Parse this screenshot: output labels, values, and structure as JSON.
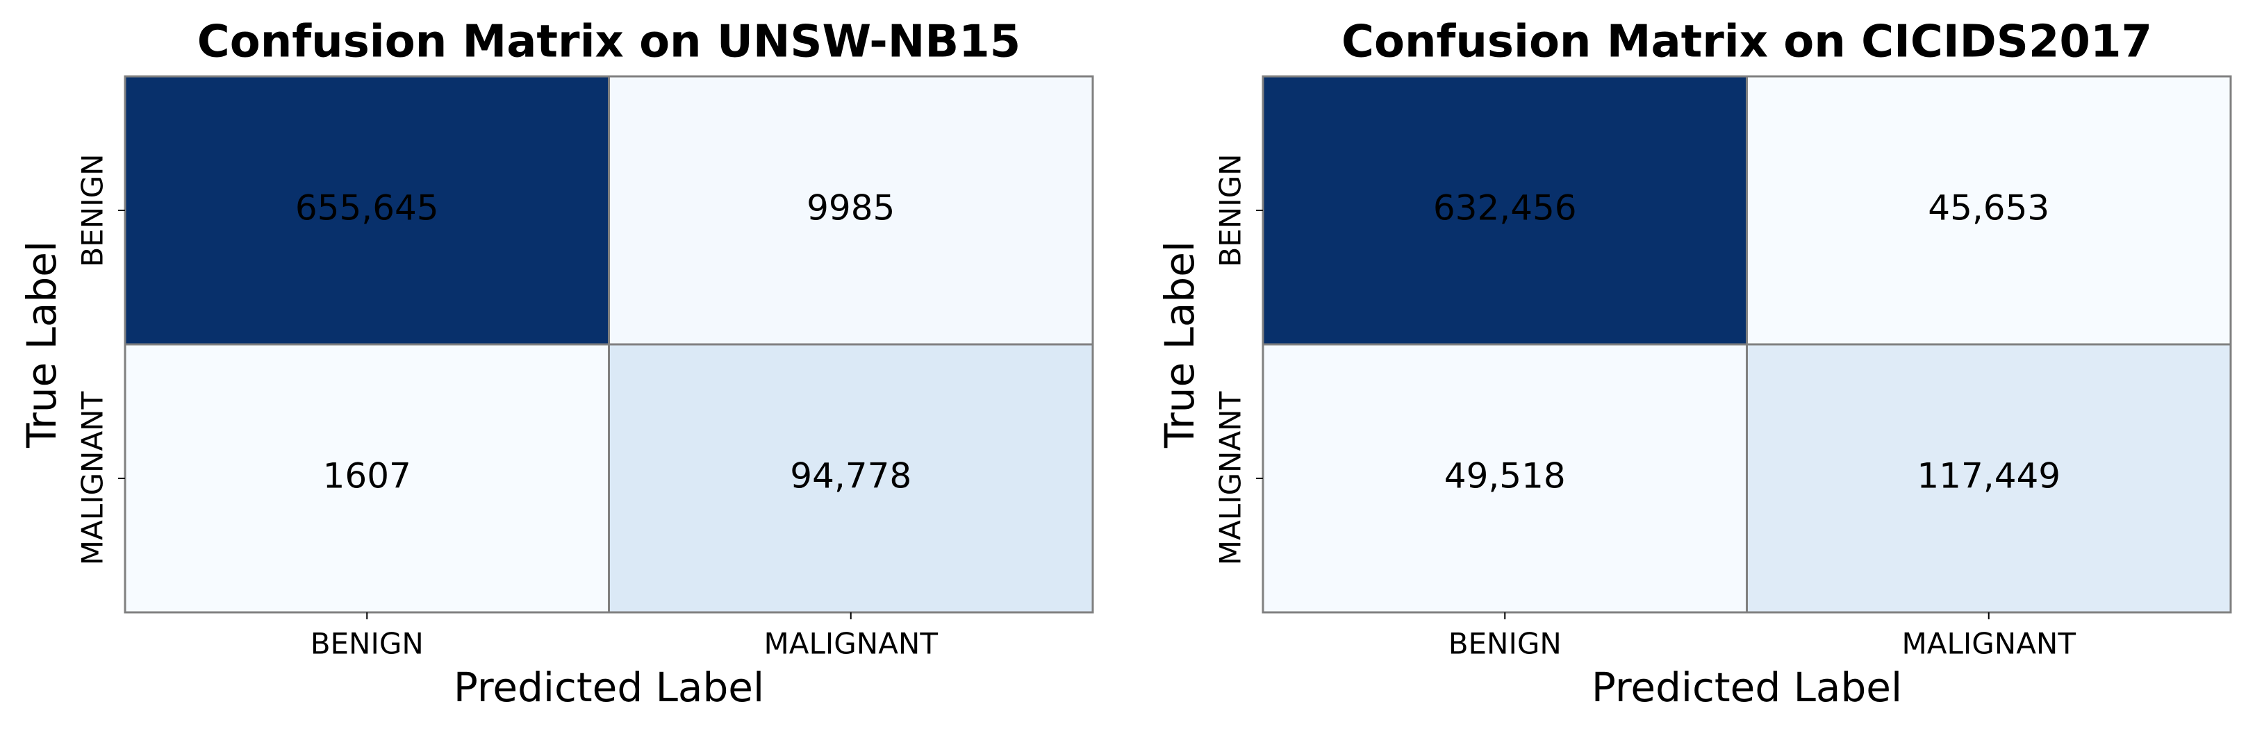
{
  "chart_data": [
    {
      "type": "heatmap",
      "title": "Confusion Matrix on UNSW-NB15",
      "xlabel": "Predicted Label",
      "ylabel": "True Label",
      "x_categories": [
        "BENIGN",
        "MALIGNANT"
      ],
      "y_categories": [
        "BENIGN",
        "MALIGNANT"
      ],
      "values": [
        [
          655645,
          9985
        ],
        [
          1607,
          94778
        ]
      ],
      "value_labels": [
        [
          "655,645",
          "9985"
        ],
        [
          "1607",
          "94,778"
        ]
      ],
      "colormap": [
        "#f7fbff",
        "#deebf7",
        "#c6dbef",
        "#9ecae1",
        "#6baed6",
        "#4292c6",
        "#2171b5",
        "#08519c",
        "#08306b"
      ]
    },
    {
      "type": "heatmap",
      "title": "Confusion Matrix on CICIDS2017",
      "xlabel": "Predicted Label",
      "ylabel": "True Label",
      "x_categories": [
        "BENIGN",
        "MALIGNANT"
      ],
      "y_categories": [
        "BENIGN",
        "MALIGNANT"
      ],
      "values": [
        [
          632456,
          45653
        ],
        [
          49518,
          117449
        ]
      ],
      "value_labels": [
        [
          "632,456",
          "45,653"
        ],
        [
          "49,518",
          "117,449"
        ]
      ],
      "colormap": [
        "#f7fbff",
        "#deebf7",
        "#c6dbef",
        "#9ecae1",
        "#6baed6",
        "#4292c6",
        "#2171b5",
        "#08519c",
        "#08306b"
      ]
    }
  ]
}
